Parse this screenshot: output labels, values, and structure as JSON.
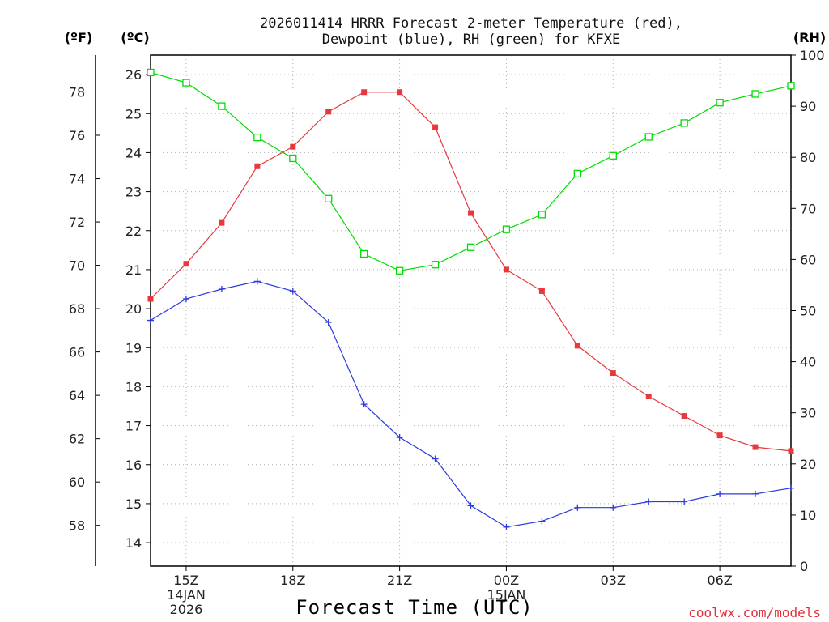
{
  "chart_data": {
    "type": "line",
    "title": [
      "2026011414 HRRR Forecast 2-meter Temperature (red),",
      "Dewpoint (blue), RH (green) for KFXE"
    ],
    "xlabel": "Forecast Time (UTC)",
    "credit": "coolwx.com/models",
    "units": {
      "fahrenheit": "(ºF)",
      "celsius": "(ºC)",
      "rh": "(RH)"
    },
    "x": [
      14,
      15,
      16,
      17,
      18,
      19,
      20,
      21,
      22,
      23,
      24,
      25,
      26,
      27,
      28,
      29,
      30,
      31,
      32
    ],
    "x_ticks": [
      {
        "x": 15,
        "lines": [
          "15Z",
          "14JAN",
          "2026"
        ]
      },
      {
        "x": 18,
        "lines": [
          "18Z"
        ]
      },
      {
        "x": 21,
        "lines": [
          "21Z"
        ]
      },
      {
        "x": 24,
        "lines": [
          "00Z",
          "15JAN"
        ]
      },
      {
        "x": 27,
        "lines": [
          "03Z"
        ]
      },
      {
        "x": 30,
        "lines": [
          "06Z"
        ]
      }
    ],
    "xlim": [
      14,
      32
    ],
    "ylim_celsius": [
      13.4,
      26.5
    ],
    "ylim_rh": [
      0,
      100
    ],
    "celsius_ticks": [
      "14",
      "15",
      "16",
      "17",
      "18",
      "19",
      "20",
      "21",
      "22",
      "23",
      "24",
      "25",
      "26"
    ],
    "fahrenheit_ticks": [
      "58",
      "60",
      "62",
      "64",
      "66",
      "68",
      "70",
      "72",
      "74",
      "76",
      "78"
    ],
    "rh_ticks": [
      "0",
      "10",
      "20",
      "30",
      "40",
      "50",
      "60",
      "70",
      "80",
      "90",
      "100"
    ],
    "series": [
      {
        "name": "Temperature",
        "axis": "celsius",
        "color": "#e8383e",
        "marker": "filled-square",
        "values": [
          20.25,
          21.15,
          22.2,
          23.65,
          24.15,
          25.05,
          25.55,
          25.55,
          24.65,
          22.45,
          21.0,
          20.45,
          19.05,
          18.35,
          17.75,
          17.25,
          16.75,
          16.45,
          16.35
        ]
      },
      {
        "name": "Dewpoint",
        "axis": "celsius",
        "color": "#2b3be0",
        "marker": "plus",
        "values": [
          19.7,
          20.25,
          20.5,
          20.7,
          20.45,
          19.65,
          17.55,
          16.7,
          16.15,
          14.95,
          14.4,
          14.55,
          14.9,
          14.9,
          15.05,
          15.05,
          15.25,
          15.25,
          15.4
        ]
      },
      {
        "name": "RH",
        "axis": "rh",
        "color": "#00dd00",
        "marker": "open-square",
        "values": [
          96.6,
          94.6,
          90.0,
          83.9,
          79.8,
          71.9,
          61.1,
          57.8,
          59.0,
          62.4,
          65.9,
          68.8,
          76.8,
          80.3,
          84.0,
          86.7,
          90.7,
          92.4,
          94.0
        ]
      }
    ]
  }
}
